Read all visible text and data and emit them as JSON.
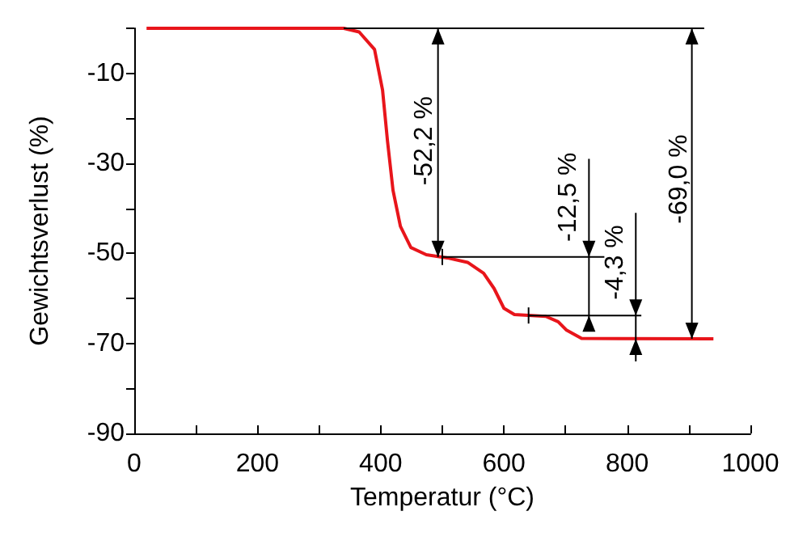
{
  "chart_data": {
    "type": "line",
    "xlabel": "Temperatur (°C)",
    "ylabel": "Gewichtsverlust (%)",
    "x": [
      20,
      340,
      365,
      390,
      403,
      411,
      420,
      432,
      449,
      474,
      508,
      541,
      567,
      584,
      600,
      617,
      668,
      688,
      701,
      726,
      940
    ],
    "series": [
      {
        "color": "#e8151b",
        "values": [
          0,
          0,
          -0.8,
          -4.7,
          -13.7,
          -25,
          -36,
          -44,
          -48.7,
          -50.3,
          -51,
          -52,
          -54.4,
          -57.8,
          -62.2,
          -63.6,
          -64,
          -65.2,
          -67,
          -68.9,
          -69
        ]
      }
    ],
    "xlim": [
      0,
      1000
    ],
    "xticks": [
      0,
      {
        "value": 100,
        "label": null
      },
      200,
      {
        "value": 300,
        "label": null
      },
      400,
      {
        "value": 500,
        "label": null
      },
      600,
      {
        "value": 700,
        "label": null
      },
      800,
      {
        "value": 900,
        "label": null
      },
      1000
    ],
    "ylim": [
      -90,
      0
    ],
    "yticks": [
      {
        "value": 0,
        "label": null
      },
      -10,
      {
        "value": -20,
        "label": null
      },
      -30,
      {
        "value": -40,
        "label": null
      },
      -50,
      {
        "value": -60,
        "label": null
      },
      -70,
      {
        "value": -80,
        "label": null
      },
      -90
    ],
    "annotations": [
      "-52,2 %",
      {
        "text": "-12,5 %",
        "x": 500,
        "y": -50.8
      },
      {
        "text": "-4,3 %",
        "x": 640,
        "y": -63.8
      },
      "-69,0 %"
    ],
    "marker": "none",
    "line_style": "solid"
  }
}
